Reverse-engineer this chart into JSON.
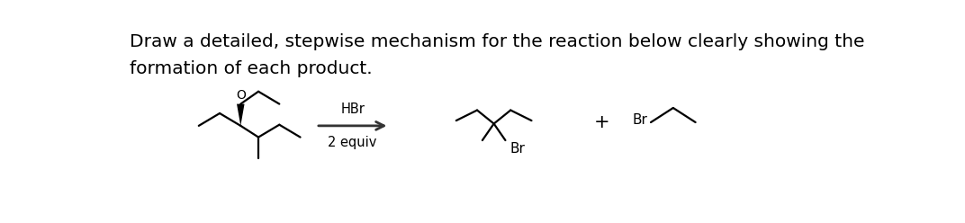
{
  "bg_color": "#ffffff",
  "text_line1": "Draw a detailed, stepwise mechanism for the reaction below clearly showing the",
  "text_line2": "formation of each product.",
  "text_fontsize": 14.5,
  "reagent_line1": "HBr",
  "reagent_line2": "2 equiv",
  "reagent_fontsize": 10.5,
  "plus_fontsize": 15,
  "br_label_fontsize": 11,
  "o_label_fontsize": 10,
  "line_color": "#000000",
  "line_width": 1.6,
  "wedge_color": "#000000",
  "arrow_color": "#333333"
}
